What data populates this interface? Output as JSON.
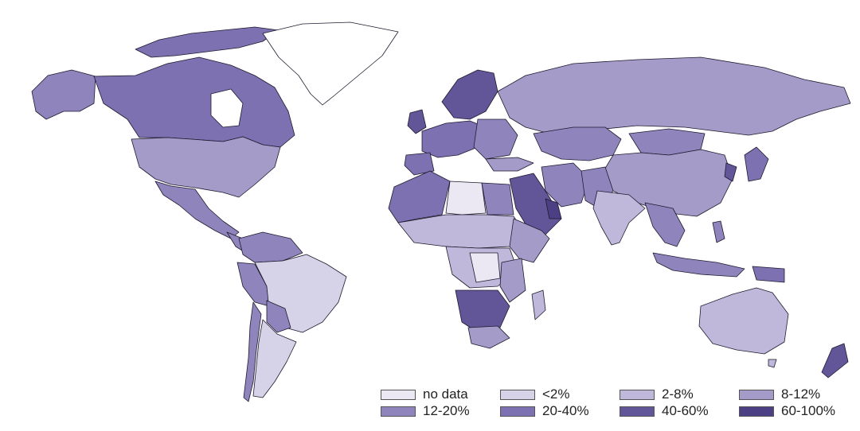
{
  "map": {
    "legend": [
      {
        "label": "no data",
        "color": "#ebe8f3"
      },
      {
        "label": "<2%",
        "color": "#d6d2e7"
      },
      {
        "label": "2-8%",
        "color": "#c0b8da"
      },
      {
        "label": "8-12%",
        "color": "#a49bc8"
      },
      {
        "label": "12-20%",
        "color": "#8f85bc"
      },
      {
        "label": "20-40%",
        "color": "#7d71b1"
      },
      {
        "label": "40-60%",
        "color": "#625598"
      },
      {
        "label": "60-100%",
        "color": "#4c3f84"
      }
    ]
  }
}
